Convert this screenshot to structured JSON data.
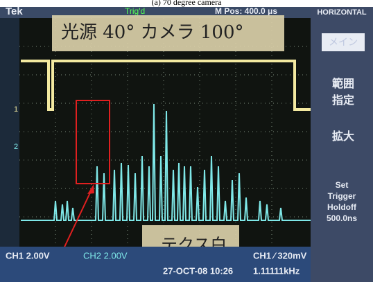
{
  "caption": "(a) 70 degree camera",
  "header": {
    "brand": "Tek",
    "trigger": "Trig'd",
    "position": "M Pos: 400.0 μs",
    "menu_title": "HORIZONTAL"
  },
  "notes": {
    "top": "光源 40° カメラ 100°",
    "bottom": "テクス白"
  },
  "channel_markers": [
    "1",
    "2"
  ],
  "menu": {
    "main": "メイン",
    "range": [
      "範囲",
      "指定"
    ],
    "zoom": "拡大",
    "holdoff": [
      "Set",
      "Trigger",
      "Holdoff",
      "500.0ns"
    ]
  },
  "status": {
    "ch1": "CH1 2.00V",
    "ch2": "CH2 2.00V",
    "date": "27-OCT-08 10:26",
    "trigger": "CH1 ∕ 320mV",
    "frequency": "1.11111kHz"
  }
}
